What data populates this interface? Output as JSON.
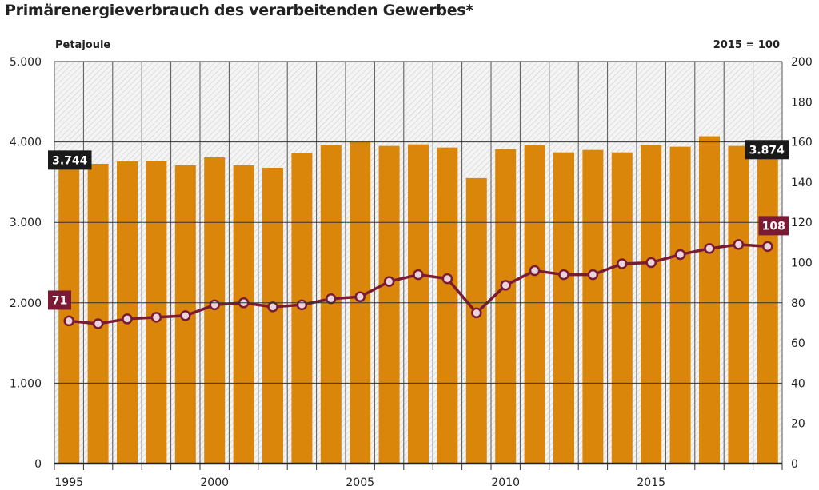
{
  "chart_data": {
    "type": "bar+line",
    "title": "Primärenergieverbrauch des verarbeitenden Gewerbes*",
    "ylabel_left": "Petajoule",
    "ylabel_right": "2015 = 100",
    "ylim_left": [
      0,
      5000
    ],
    "ylim_right": [
      0,
      200
    ],
    "yticks_left": [
      "0",
      "1.000",
      "2.000",
      "3.000",
      "4.000",
      "5.000"
    ],
    "yticks_right": [
      "0",
      "20",
      "40",
      "60",
      "80",
      "100",
      "120",
      "140",
      "160",
      "180",
      "200"
    ],
    "xtick_labels": [
      "1995",
      "2000",
      "2005",
      "2010",
      "2015"
    ],
    "grid": true,
    "x": [
      1995,
      1996,
      1997,
      1998,
      1999,
      2000,
      2001,
      2002,
      2003,
      2004,
      2005,
      2006,
      2007,
      2008,
      2009,
      2010,
      2011,
      2012,
      2013,
      2014,
      2015,
      2016,
      2017,
      2018,
      2019
    ],
    "series": [
      {
        "type": "bar",
        "axis": "left",
        "color": "#d9860a",
        "values": [
          3744,
          3728,
          3757,
          3765,
          3708,
          3807,
          3708,
          3678,
          3857,
          3960,
          4000,
          3950,
          3970,
          3930,
          3550,
          3910,
          3960,
          3870,
          3900,
          3870,
          3960,
          3940,
          4070,
          3950,
          3874
        ]
      },
      {
        "type": "line",
        "axis": "right",
        "color": "#7a1a35",
        "values": [
          71,
          69.6,
          72,
          72.8,
          73.6,
          79,
          80,
          78,
          79,
          82,
          83,
          90.6,
          94,
          92,
          75,
          88.7,
          96,
          94,
          94,
          99.4,
          100,
          104,
          107,
          109,
          108
        ]
      }
    ],
    "annotations": [
      {
        "text": "3.744",
        "x": 1995,
        "series": "bar",
        "color": "#1a1a1a"
      },
      {
        "text": "3.874",
        "x": 2019,
        "series": "bar",
        "color": "#1a1a1a"
      },
      {
        "text": "71",
        "x": 1995,
        "series": "line",
        "color": "#7a1a35"
      },
      {
        "text": "108",
        "x": 2019,
        "series": "line",
        "color": "#7a1a35"
      }
    ]
  }
}
